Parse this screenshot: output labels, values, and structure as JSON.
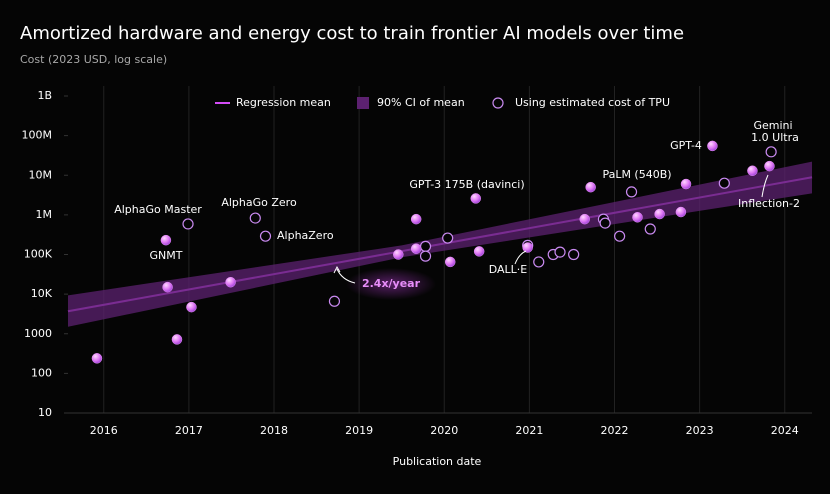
{
  "chart_data": {
    "type": "scatter",
    "title": "Amortized hardware and energy cost to train frontier AI models over time",
    "subtitle": "Cost (2023 USD, log scale)",
    "x_label": "Publication date",
    "log_scale": true,
    "grid": "x",
    "legend": "top",
    "xlim": [
      2015.58,
      2024.32
    ],
    "ylim": [
      10,
      1000000000
    ],
    "xticks": [
      2016,
      2017,
      2018,
      2019,
      2020,
      2021,
      2022,
      2023,
      2024
    ],
    "yticks": [
      10,
      100,
      1000,
      {
        "value": 10000,
        "label": "10K"
      },
      {
        "value": 100000,
        "label": "100K"
      },
      {
        "value": 1000000,
        "label": "1M"
      },
      {
        "value": 10000000,
        "label": "10M"
      },
      {
        "value": 100000000,
        "label": "100M"
      },
      {
        "value": 1000000000,
        "label": "1B"
      }
    ],
    "series": [
      {
        "name": "Regression mean",
        "type": "line",
        "color": "#d34cf6",
        "x": [
          2015.58,
          2024.32
        ],
        "values": [
          3700,
          8900000
        ]
      },
      {
        "name": "90% CI of mean",
        "type": "band",
        "color": "#5c2170",
        "x": [
          2015.58,
          2019.5,
          2024.32
        ],
        "lower": [
          1500,
          85000,
          3500000
        ],
        "upper": [
          9300,
          170000,
          22000000
        ]
      },
      {
        "name": "Using estimated cost of TPU",
        "type": "hollow",
        "color": "#c98af0",
        "x": [
          2016.99,
          2017.78,
          2017.9,
          2018.71,
          2019.78,
          2019.78,
          2020.04,
          2020.98,
          2021.11,
          2021.28,
          2021.36,
          2021.52,
          2021.87,
          2021.89,
          2022.06,
          2022.2,
          2022.42,
          2023.29,
          2023.84
        ],
        "values": [
          590000,
          830000,
          290000,
          6600,
          160000,
          91000,
          260000,
          170000,
          65000,
          100000,
          115000,
          100000,
          780000,
          620000,
          290000,
          3800000,
          440000,
          6300000,
          39000000
        ]
      },
      {
        "type": "filled",
        "color": "#e48cf8",
        "x": [
          2015.92,
          2016.73,
          2016.75,
          2016.86,
          2017.03,
          2017.49,
          2019.46,
          2019.67,
          2019.67,
          2020.07,
          2020.37,
          2020.41,
          2020.98,
          2021.65,
          2021.72,
          2022.27,
          2022.53,
          2022.78,
          2022.84,
          2023.15,
          2023.62,
          2023.82
        ],
        "values": [
          240,
          230000,
          15000,
          720,
          4700,
          20000,
          100000,
          780000,
          140000,
          65000,
          2600000,
          120000,
          150000,
          780000,
          5000000,
          870000,
          1050000,
          1180000,
          6000000,
          55000000,
          13000000,
          17000000
        ]
      }
    ],
    "annotations": [
      "AlphaGo Master",
      "GNMT",
      "AlphaGo Zero",
      "AlphaZero",
      "GPT-3 175B (davinci)",
      "DALL·E",
      "PaLM (540B)",
      "GPT-4",
      "Gemini",
      "1.0 Ultra",
      "Inflection-2",
      "2.4x/year"
    ]
  }
}
